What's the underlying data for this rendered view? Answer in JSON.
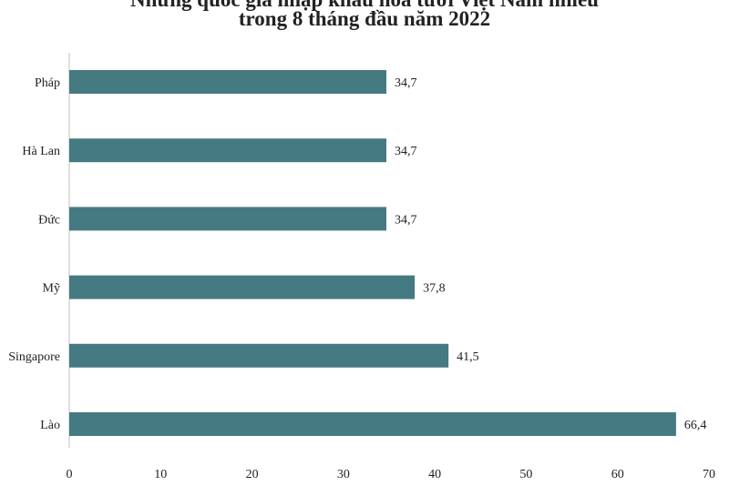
{
  "chart_data": {
    "type": "bar",
    "orientation": "horizontal",
    "title": "Những quốc gia nhập khẩu hoa tươi Việt Nam nhiều",
    "subtitle": "trong 8 tháng đầu năm 2022",
    "categories": [
      "Pháp",
      "Hà Lan",
      "Đức",
      "Mỹ",
      "Singapore",
      "Lào"
    ],
    "values": [
      34.7,
      34.7,
      34.7,
      37.8,
      41.5,
      66.4
    ],
    "value_labels": [
      "34,7",
      "34,7",
      "34,7",
      "37,8",
      "41,5",
      "66,4"
    ],
    "xlim": [
      0,
      70
    ],
    "xticks": [
      0,
      10,
      20,
      30,
      40,
      50,
      60,
      70
    ],
    "xlabel": "",
    "ylabel": "",
    "grid": false,
    "legend": "none",
    "bar_color": "#467A82"
  }
}
